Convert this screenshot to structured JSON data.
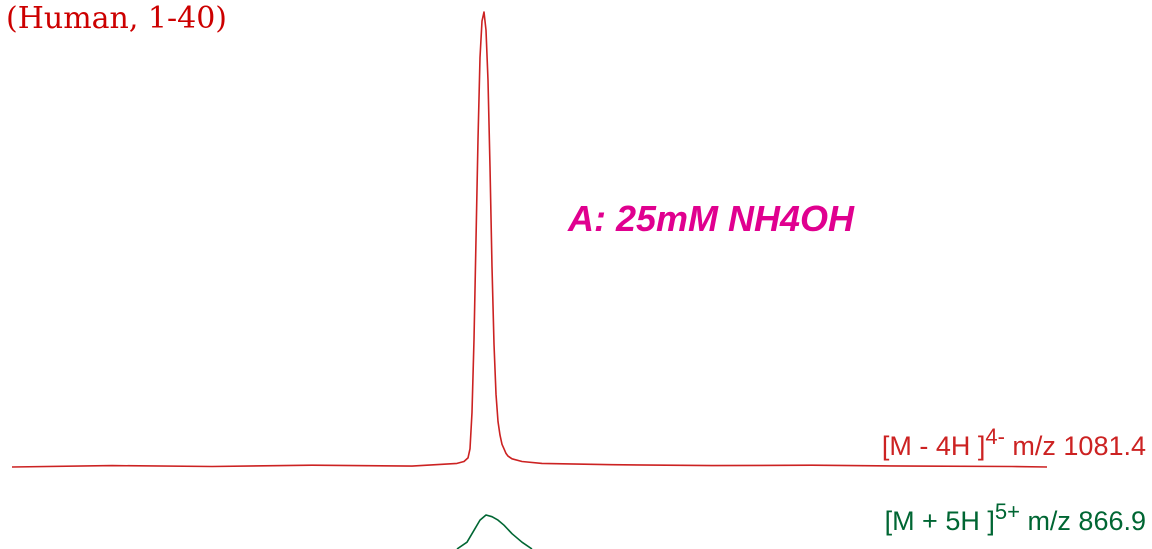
{
  "chart_data": {
    "type": "line",
    "title": "(Human, 1-40)",
    "condition_label": "A: 25mM NH4OH",
    "xlabel": "",
    "ylabel": "",
    "grid": false,
    "colors": {
      "title": "#cc0000",
      "condition": "#e0008f",
      "negative_trace": "#cc2222",
      "positive_trace": "#006633"
    },
    "series": [
      {
        "id": "negative",
        "ion_prefix": "[M - 4H ]",
        "charge": "4-",
        "mz_text": " m/z 1081.4",
        "color": "#cc2222",
        "x": [
          0,
          100,
          200,
          300,
          400,
          430,
          445,
          452,
          456,
          458,
          460,
          462,
          464,
          466,
          468,
          470,
          472,
          474,
          476,
          478,
          480,
          482,
          484,
          486,
          488,
          490,
          492,
          494,
          496,
          500,
          510,
          530,
          600,
          700,
          800,
          900,
          1000,
          1035
        ],
        "y": [
          0,
          0.003,
          0.001,
          0.004,
          0.002,
          0.006,
          0.008,
          0.012,
          0.02,
          0.04,
          0.12,
          0.28,
          0.5,
          0.72,
          0.9,
          0.98,
          1.0,
          0.96,
          0.85,
          0.66,
          0.44,
          0.27,
          0.16,
          0.1,
          0.07,
          0.05,
          0.04,
          0.03,
          0.024,
          0.018,
          0.012,
          0.008,
          0.005,
          0.003,
          0.004,
          0.002,
          0.001,
          0.0
        ]
      },
      {
        "id": "positive",
        "ion_prefix": "[M + 5H ]",
        "charge": "5+",
        "mz_text": " m/z 866.9",
        "color": "#006633",
        "x": [
          445,
          455,
          462,
          468,
          474,
          480,
          486,
          492,
          500,
          510,
          520
        ],
        "y": [
          0,
          0.2,
          0.55,
          0.85,
          1.0,
          0.95,
          0.85,
          0.7,
          0.45,
          0.2,
          0
        ]
      }
    ]
  }
}
